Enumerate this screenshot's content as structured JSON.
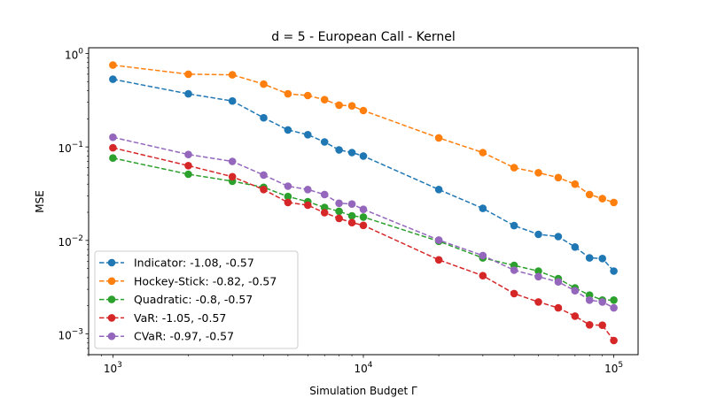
{
  "chart_data": {
    "type": "line",
    "title": "d = 5 - European Call - Kernel",
    "xlabel": "Simulation Budget Γ",
    "ylabel": "MSE",
    "xscale": "log",
    "yscale": "log",
    "xlim": [
      800,
      125000
    ],
    "ylim": [
      0.0006,
      1.15
    ],
    "x_ticks": [
      {
        "value": 1000,
        "mantissa": "10",
        "exp": "3"
      },
      {
        "value": 10000,
        "mantissa": "10",
        "exp": "4"
      },
      {
        "value": 100000,
        "mantissa": "10",
        "exp": "5"
      }
    ],
    "y_ticks": [
      {
        "value": 0.001,
        "mantissa": "10",
        "exp": "−3"
      },
      {
        "value": 0.01,
        "mantissa": "10",
        "exp": "−2"
      },
      {
        "value": 0.1,
        "mantissa": "10",
        "exp": "−1"
      },
      {
        "value": 1,
        "mantissa": "10",
        "exp": "0"
      }
    ],
    "grid": false,
    "legend_position": "lower-left",
    "x": [
      1000,
      2000,
      3000,
      4000,
      5000,
      6000,
      7000,
      8000,
      9000,
      10000,
      20000,
      30000,
      40000,
      50000,
      60000,
      70000,
      80000,
      90000,
      100000
    ],
    "series": [
      {
        "name": "Indicator: -1.08, -0.57",
        "color": "#1f77b4",
        "values": [
          0.53,
          0.37,
          0.31,
          0.205,
          0.152,
          0.135,
          0.113,
          0.093,
          0.087,
          0.08,
          0.035,
          0.022,
          0.0144,
          0.0116,
          0.011,
          0.0085,
          0.0065,
          0.0064,
          0.0047
        ]
      },
      {
        "name": "Hockey-Stick: -0.82, -0.57",
        "color": "#ff7f0e",
        "values": [
          0.75,
          0.6,
          0.59,
          0.47,
          0.37,
          0.355,
          0.32,
          0.28,
          0.275,
          0.245,
          0.125,
          0.087,
          0.06,
          0.053,
          0.047,
          0.04,
          0.031,
          0.028,
          0.0255
        ]
      },
      {
        "name": "Quadratic: -0.8, -0.57",
        "color": "#2ca02c",
        "values": [
          0.076,
          0.051,
          0.043,
          0.037,
          0.0295,
          0.026,
          0.0225,
          0.0205,
          0.0183,
          0.0178,
          0.0098,
          0.0065,
          0.0054,
          0.0047,
          0.0039,
          0.0031,
          0.0026,
          0.0023,
          0.0023
        ]
      },
      {
        "name": "VaR: -1.05, -0.57",
        "color": "#d62728",
        "values": [
          0.098,
          0.063,
          0.048,
          0.035,
          0.0255,
          0.0238,
          0.0198,
          0.0172,
          0.0155,
          0.0145,
          0.0062,
          0.0042,
          0.0027,
          0.0022,
          0.0019,
          0.00155,
          0.00125,
          0.00124,
          0.00085
        ]
      },
      {
        "name": "CVaR: -0.97, -0.57",
        "color": "#9467bd",
        "values": [
          0.127,
          0.083,
          0.07,
          0.05,
          0.038,
          0.035,
          0.031,
          0.025,
          0.0245,
          0.0215,
          0.0101,
          0.0069,
          0.0048,
          0.0041,
          0.0036,
          0.0029,
          0.0023,
          0.0022,
          0.0019
        ]
      }
    ]
  }
}
